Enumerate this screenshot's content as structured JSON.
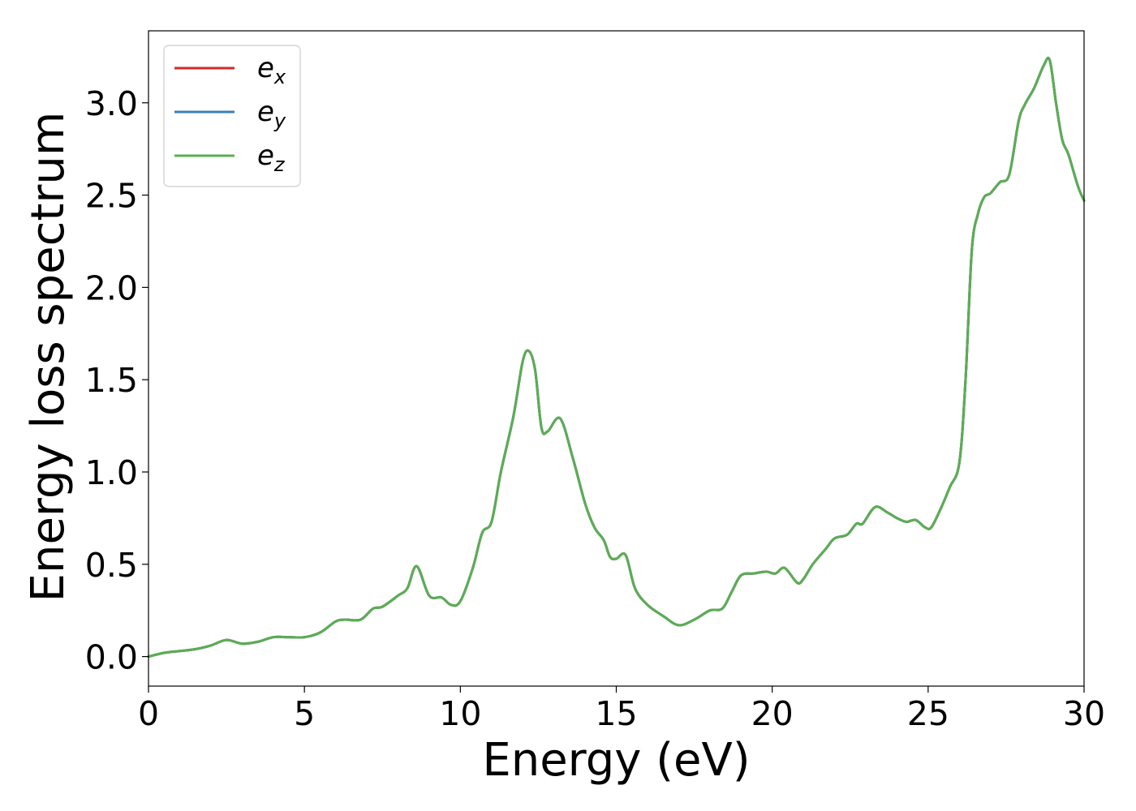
{
  "chart_data": {
    "type": "line",
    "title": "",
    "xlabel": "Energy (eV)",
    "ylabel": "Energy loss spectrum",
    "xlim": [
      0,
      30
    ],
    "ylim": [
      -0.16,
      3.39
    ],
    "xticks": [
      0,
      5,
      10,
      15,
      20,
      25,
      30
    ],
    "xtick_labels": [
      "0",
      "5",
      "10",
      "15",
      "20",
      "25",
      "30"
    ],
    "yticks": [
      0.0,
      0.5,
      1.0,
      1.5,
      2.0,
      2.5,
      3.0
    ],
    "ytick_labels": [
      "0.0",
      "0.5",
      "1.0",
      "1.5",
      "2.0",
      "2.5",
      "3.0"
    ],
    "grid": false,
    "legend_position": "top-left",
    "series": [
      {
        "name": "e",
        "subscript": "x",
        "color": "#d62728"
      },
      {
        "name": "e",
        "subscript": "y",
        "color": "#3a7fb8"
      },
      {
        "name": "e",
        "subscript": "z",
        "color": "#5aae53"
      }
    ],
    "x": [
      0,
      0.5,
      1.0,
      1.5,
      2.0,
      2.5,
      3.0,
      3.5,
      4.0,
      4.5,
      5.0,
      5.5,
      6.0,
      6.3,
      6.8,
      7.2,
      7.5,
      8.0,
      8.3,
      8.6,
      9.0,
      9.4,
      9.7,
      10.0,
      10.4,
      10.7,
      11.0,
      11.3,
      11.7,
      12.0,
      12.2,
      12.4,
      12.6,
      12.8,
      13.2,
      13.6,
      14.0,
      14.3,
      14.6,
      14.8,
      15.0,
      15.3,
      15.6,
      16.0,
      16.5,
      17.0,
      17.5,
      18.0,
      18.4,
      18.7,
      19.0,
      19.4,
      19.8,
      20.1,
      20.4,
      20.8,
      21.0,
      21.3,
      21.7,
      22.0,
      22.4,
      22.7,
      22.9,
      23.3,
      23.7,
      24.0,
      24.3,
      24.6,
      24.9,
      25.1,
      25.4,
      25.7,
      26.0,
      26.2,
      26.4,
      26.6,
      26.8,
      27.0,
      27.3,
      27.6,
      27.9,
      28.1,
      28.4,
      28.7,
      28.9,
      29.1,
      29.3,
      29.5,
      29.8,
      30.0
    ],
    "y": [
      0.0,
      0.02,
      0.03,
      0.04,
      0.06,
      0.09,
      0.07,
      0.08,
      0.105,
      0.105,
      0.105,
      0.13,
      0.19,
      0.2,
      0.2,
      0.26,
      0.27,
      0.33,
      0.37,
      0.49,
      0.33,
      0.32,
      0.28,
      0.3,
      0.48,
      0.67,
      0.73,
      1.0,
      1.3,
      1.6,
      1.655,
      1.55,
      1.24,
      1.22,
      1.29,
      1.08,
      0.83,
      0.7,
      0.63,
      0.54,
      0.53,
      0.55,
      0.37,
      0.28,
      0.22,
      0.17,
      0.2,
      0.25,
      0.26,
      0.35,
      0.44,
      0.45,
      0.46,
      0.45,
      0.48,
      0.4,
      0.42,
      0.5,
      0.58,
      0.64,
      0.66,
      0.72,
      0.72,
      0.81,
      0.78,
      0.75,
      0.73,
      0.74,
      0.7,
      0.7,
      0.8,
      0.92,
      1.05,
      1.5,
      2.2,
      2.4,
      2.49,
      2.51,
      2.57,
      2.61,
      2.9,
      2.99,
      3.08,
      3.2,
      3.23,
      3.0,
      2.8,
      2.72,
      2.55,
      2.47
    ]
  }
}
